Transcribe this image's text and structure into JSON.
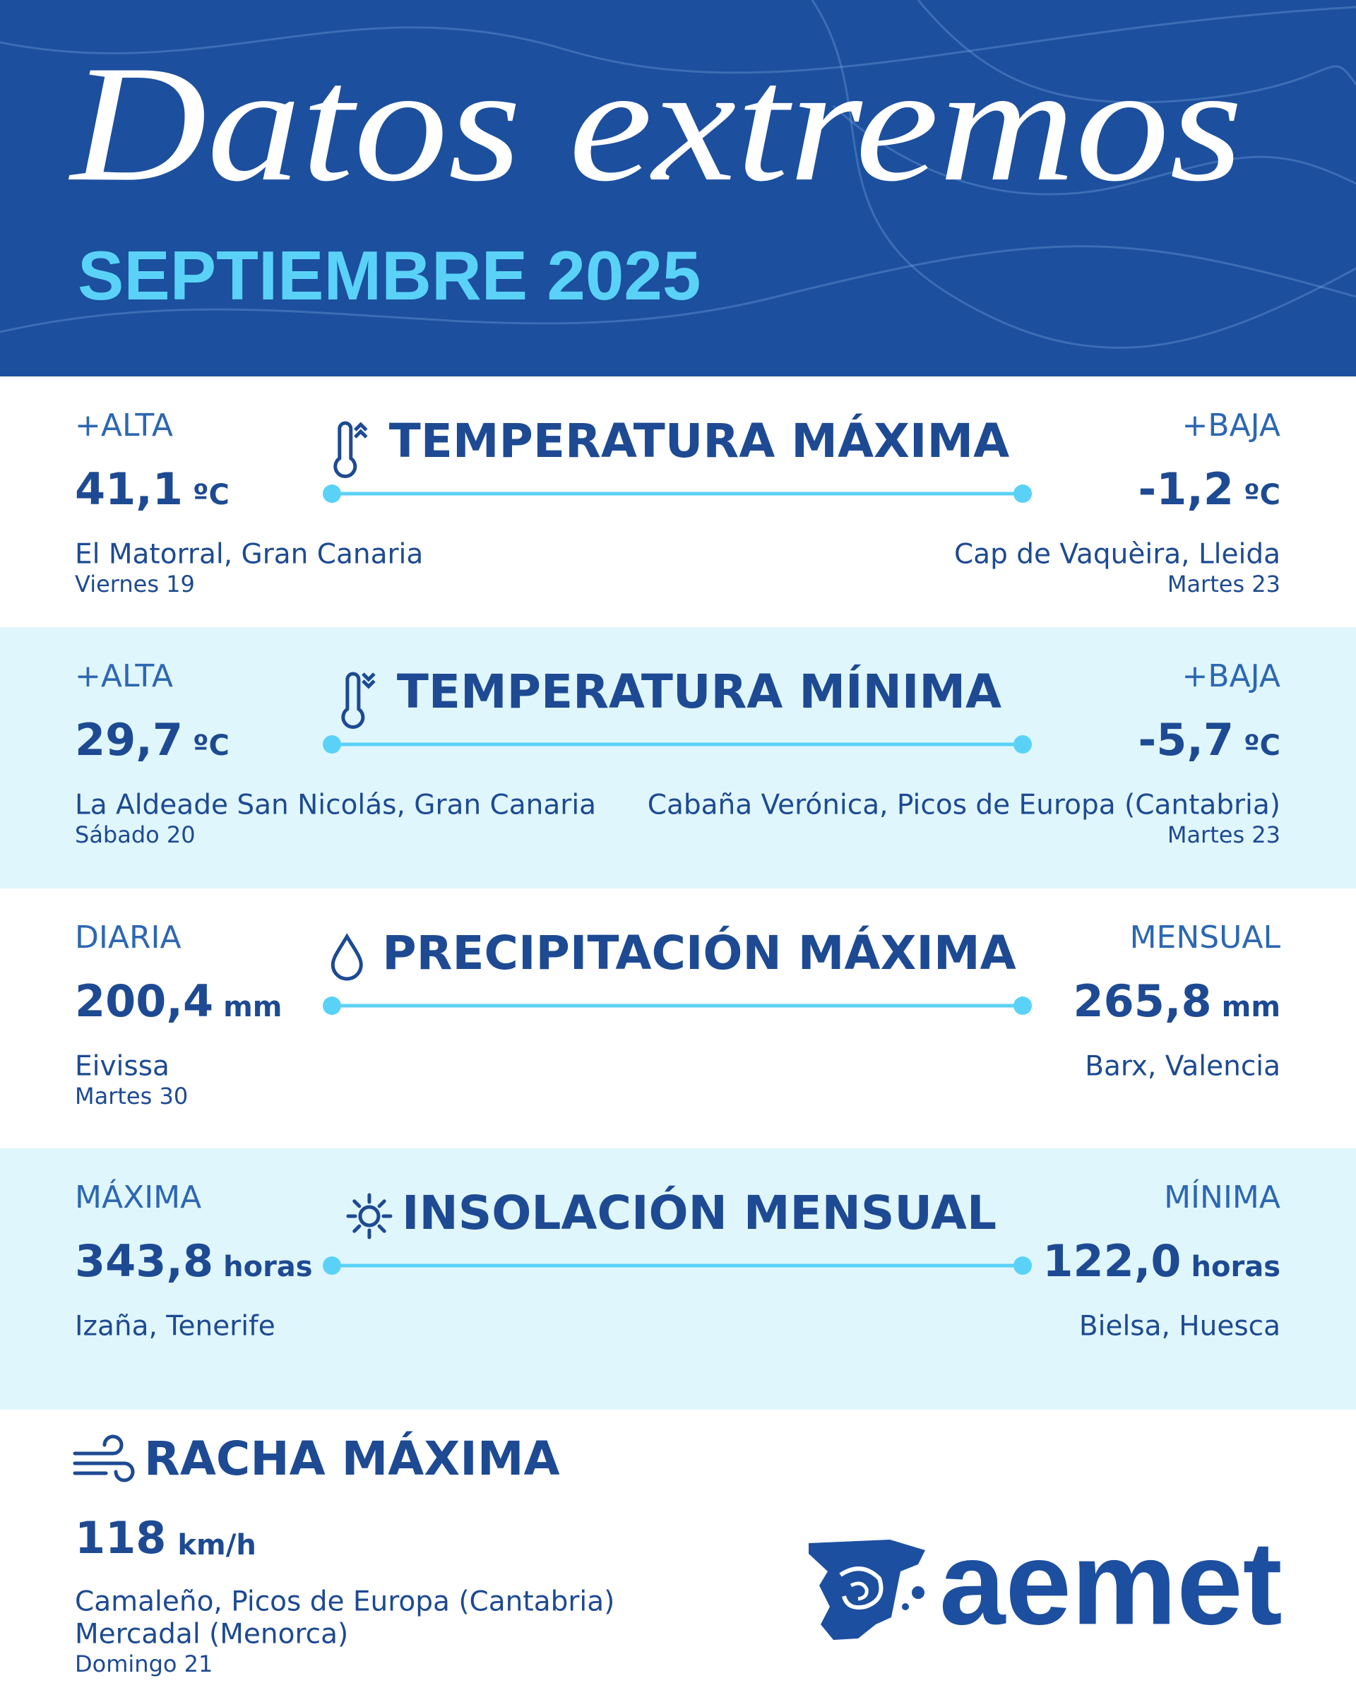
{
  "header": {
    "title": "Datos extremos",
    "subtitle": "SEPTIEMBRE 2025"
  },
  "sections": [
    {
      "title": "TEMPERATURA MÁXIMA",
      "left": {
        "label": "+ALTA",
        "value": "41,1",
        "unit": "ºC",
        "location": "El Matorral, Gran Canaria",
        "date": "Viernes 19"
      },
      "right": {
        "label": "+BAJA",
        "value": "-1,2",
        "unit": "ºC",
        "location": "Cap de Vaquèira, Lleida",
        "date": "Martes 23"
      }
    },
    {
      "title": "TEMPERATURA MÍNIMA",
      "left": {
        "label": "+ALTA",
        "value": "29,7",
        "unit": "ºC",
        "location": "La Aldeade San Nicolás, Gran Canaria",
        "date": "Sábado 20"
      },
      "right": {
        "label": "+BAJA",
        "value": "-5,7",
        "unit": "ºC",
        "location": "Cabaña Verónica, Picos de Europa (Cantabria)",
        "date": "Martes 23"
      }
    },
    {
      "title": "PRECIPITACIÓN MÁXIMA",
      "left": {
        "label": "DIARIA",
        "value": "200,4",
        "unit": "mm",
        "location": "Eivissa",
        "date": "Martes 30"
      },
      "right": {
        "label": "MENSUAL",
        "value": "265,8",
        "unit": "mm",
        "location": "Barx, Valencia"
      }
    },
    {
      "title": "INSOLACIÓN MENSUAL",
      "left": {
        "label": "MÁXIMA",
        "value": "343,8",
        "unit": "horas",
        "location": "Izaña, Tenerife"
      },
      "right": {
        "label": "MÍNIMA",
        "value": "122,0",
        "unit": "horas",
        "location": "Bielsa, Huesca"
      }
    }
  ],
  "gust": {
    "title": "RACHA MÁXIMA",
    "value": "118",
    "unit": "km/h",
    "locations": [
      "Camaleño, Picos de Europa (Cantabria)",
      "Mercadal (Menorca)"
    ],
    "date": "Domingo 21"
  },
  "logo": "aemet"
}
